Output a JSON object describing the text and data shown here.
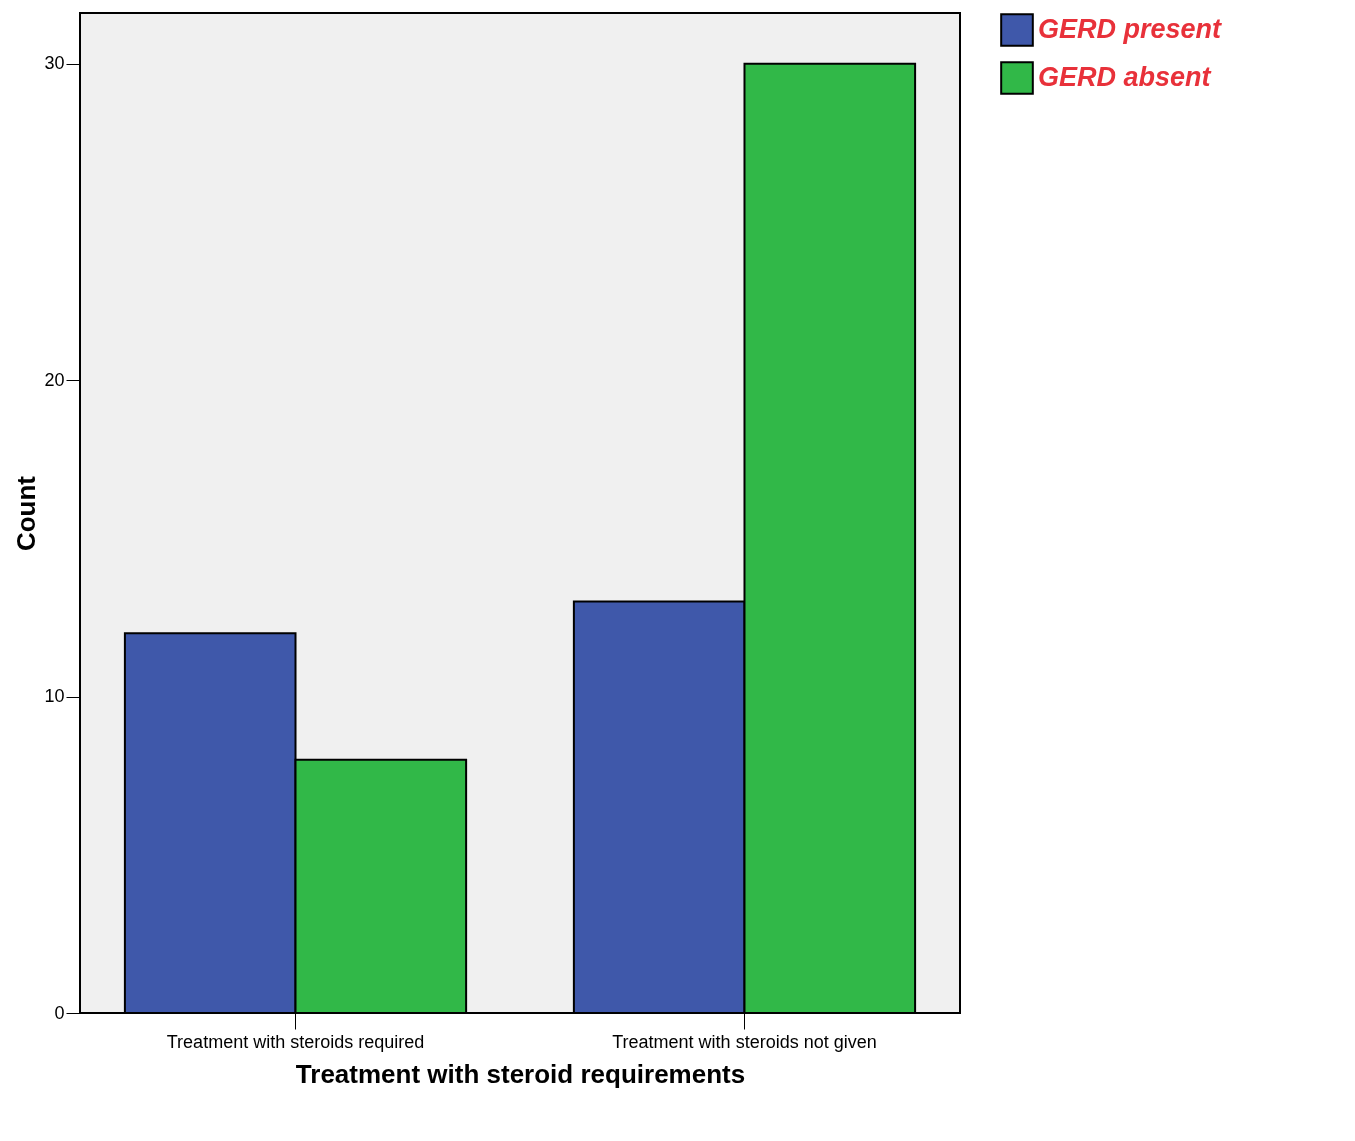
{
  "chart_data": {
    "type": "bar",
    "xlabel": "Treatment with steroid requirements",
    "ylabel": "Count",
    "categories": [
      "Treatment with steroids required",
      "Treatment with steroids not given"
    ],
    "series": [
      {
        "name": "GERD present",
        "color": "#3f58aa",
        "values": [
          12,
          13
        ]
      },
      {
        "name": "GERD absent",
        "color": "#31b848",
        "values": [
          8,
          30
        ]
      }
    ],
    "ylim": [
      0,
      31.6
    ],
    "yticks": [
      0,
      10,
      20,
      30
    ],
    "grid": false,
    "legend": "right"
  }
}
